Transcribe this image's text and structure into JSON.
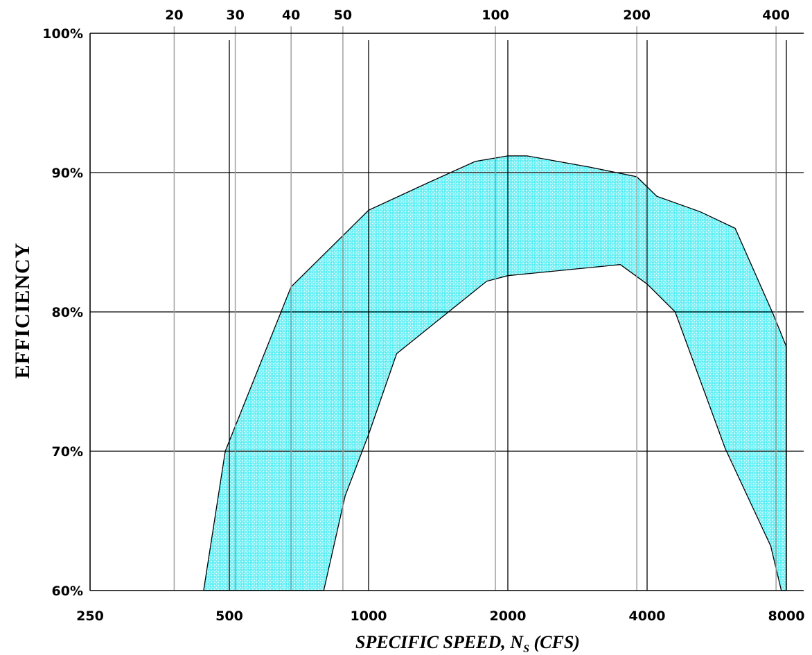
{
  "chart_data": {
    "type": "area",
    "xlabel": {
      "main": "SPECIFIC SPEED, N",
      "subscript": "S",
      "suffix": " (CFS)"
    },
    "ylabel": "EFFICIENCY",
    "x_scale": "log",
    "xlim": [
      250,
      8000
    ],
    "ylim": [
      60,
      100
    ],
    "x_ticks": [
      {
        "value": 250,
        "label": "250"
      },
      {
        "value": 500,
        "label": "500"
      },
      {
        "value": 1000,
        "label": "1000"
      },
      {
        "value": 2000,
        "label": "2000"
      },
      {
        "value": 4000,
        "label": "4000"
      },
      {
        "value": 8000,
        "label": "8000"
      }
    ],
    "y_ticks": [
      {
        "value": 60,
        "label": "60%"
      },
      {
        "value": 70,
        "label": "70%"
      },
      {
        "value": 80,
        "label": "80%"
      },
      {
        "value": 90,
        "label": "90%"
      },
      {
        "value": 100,
        "label": "100%"
      }
    ],
    "secondary_x_ticks": [
      {
        "value": 20,
        "label": "20",
        "primary_x": 380
      },
      {
        "value": 30,
        "label": "30",
        "primary_x": 515
      },
      {
        "value": 40,
        "label": "40",
        "primary_x": 680
      },
      {
        "value": 50,
        "label": "50",
        "primary_x": 880
      },
      {
        "value": 100,
        "label": "100",
        "primary_x": 1880
      },
      {
        "value": 200,
        "label": "200",
        "primary_x": 3800
      },
      {
        "value": 400,
        "label": "400",
        "primary_x": 7600
      }
    ],
    "grid": true,
    "fill_color": "#00e5ee",
    "band": {
      "upper": [
        [
          440,
          60
        ],
        [
          490,
          70
        ],
        [
          680,
          81.8
        ],
        [
          1000,
          87.3
        ],
        [
          1350,
          89.3
        ],
        [
          1700,
          90.8
        ],
        [
          2000,
          91.2
        ],
        [
          2200,
          91.2
        ],
        [
          3000,
          90.4
        ],
        [
          3800,
          89.7
        ],
        [
          4200,
          88.3
        ],
        [
          5200,
          87.2
        ],
        [
          6200,
          86.0
        ],
        [
          7500,
          79.8
        ],
        [
          8000,
          77.5
        ],
        [
          8000,
          60
        ]
      ],
      "lower": [
        [
          800,
          60
        ],
        [
          890,
          66.8
        ],
        [
          1000,
          71.2
        ],
        [
          1150,
          77.0
        ],
        [
          1800,
          82.2
        ],
        [
          2000,
          82.6
        ],
        [
          3500,
          83.4
        ],
        [
          4000,
          82.0
        ],
        [
          4600,
          80.0
        ],
        [
          5900,
          70.2
        ],
        [
          7400,
          63.2
        ],
        [
          7800,
          60
        ]
      ]
    }
  }
}
